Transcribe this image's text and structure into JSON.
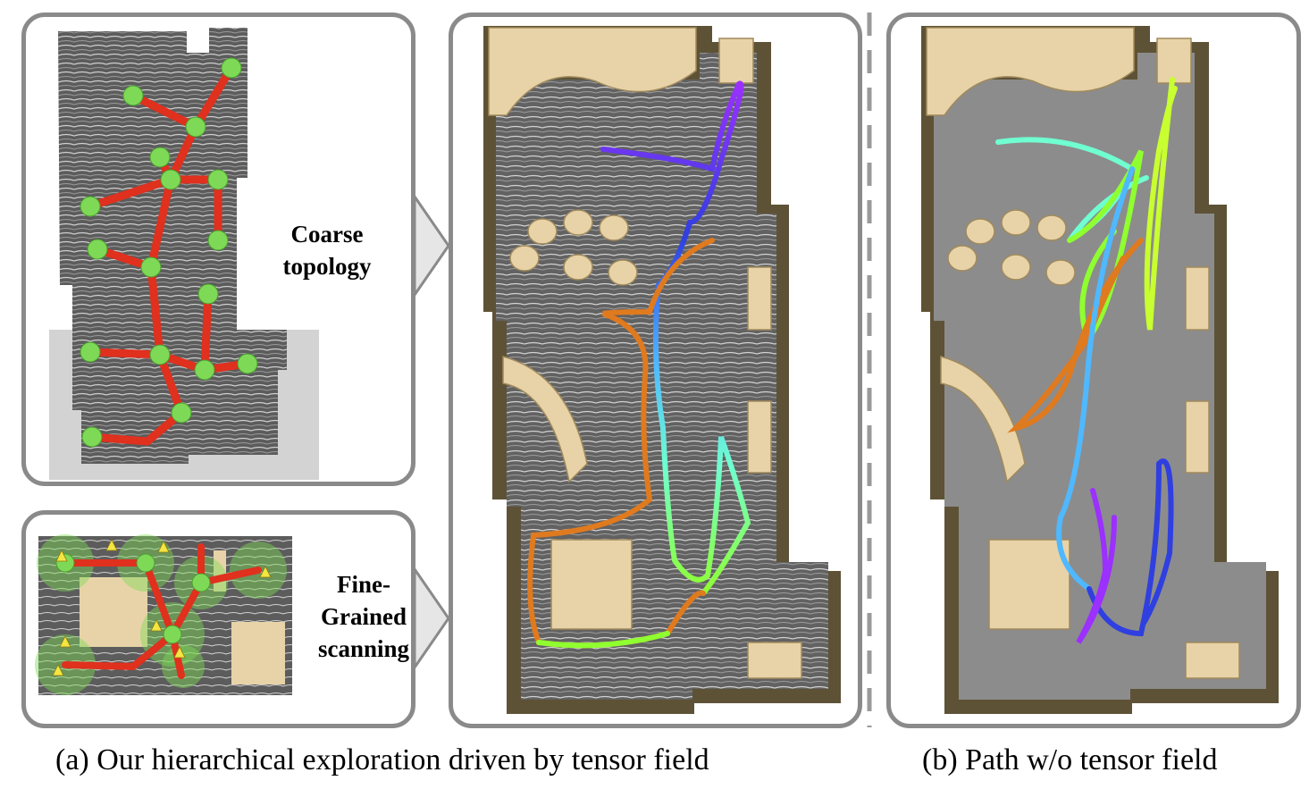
{
  "labels": {
    "coarse_line1": "Coarse",
    "coarse_line2": "topology",
    "fine_line1": "Fine-",
    "fine_line2": "Grained",
    "fine_line3": "scanning"
  },
  "captions": {
    "a": "(a) Our hierarchical exploration driven by tensor field",
    "b": "(b) Path w/o tensor field"
  },
  "colors": {
    "panel_border": "#8a8a8a",
    "topology_edge": "#e0301e",
    "topology_node": "#7ed957",
    "furniture": "#e8d3a8",
    "wall": "#5e5236",
    "floor_field": "#6e6e6e",
    "floor_plain": "#8c8c8c",
    "scan_marker": "#f4e542"
  }
}
